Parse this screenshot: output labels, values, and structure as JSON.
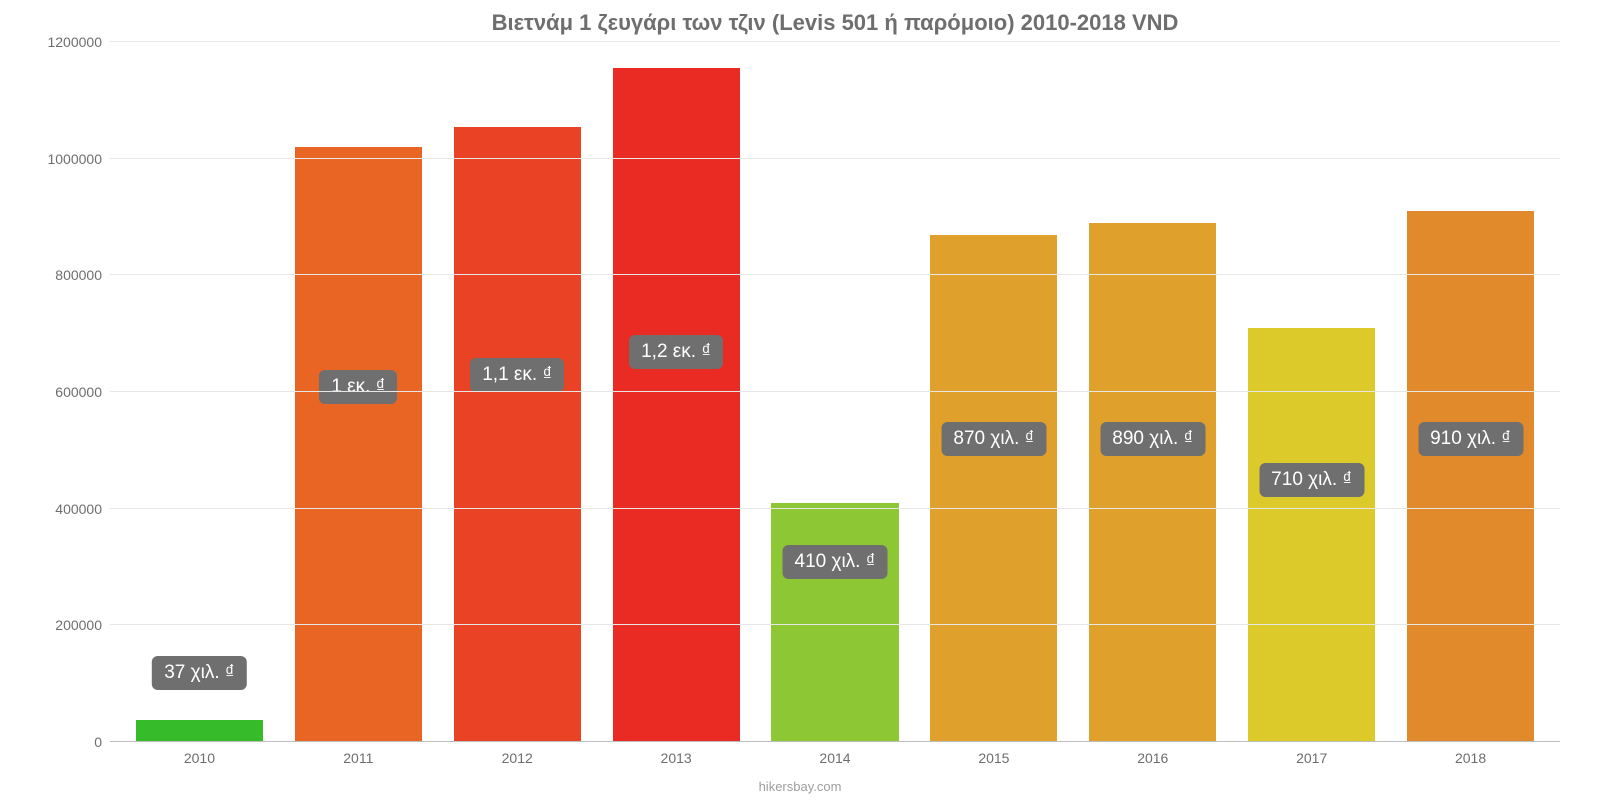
{
  "chart": {
    "type": "bar",
    "title": "Βιετνάμ 1 ζευγάρι των τζιν (Levis 501 ή παρόμοιο) 2010-2018 VND",
    "title_fontsize": 22,
    "title_color": "#6e6e6e",
    "background_color": "#ffffff",
    "grid_color": "#e6e6e6",
    "axis_color": "#bdbdbd",
    "axis_label_color": "#6e6e6e",
    "axis_fontsize": 14,
    "ylim": [
      0,
      1200000
    ],
    "yticks": [
      0,
      200000,
      400000,
      600000,
      800000,
      1000000,
      1200000
    ],
    "ytick_labels": [
      "0",
      "200000",
      "400000",
      "600000",
      "800000",
      "1000000",
      "1200000"
    ],
    "categories": [
      "2010",
      "2011",
      "2012",
      "2013",
      "2014",
      "2015",
      "2016",
      "2017",
      "2018"
    ],
    "values": [
      37000,
      1020000,
      1055000,
      1155000,
      410000,
      870000,
      890000,
      710000,
      910000
    ],
    "bar_colors": [
      "#36bb2a",
      "#e96524",
      "#e94224",
      "#e92b24",
      "#8dc734",
      "#e0a12c",
      "#e0a12c",
      "#dcc92a",
      "#e08a2c"
    ],
    "bar_width": 0.8,
    "data_labels": [
      "37 χιλ. ₫",
      "1 εκ. ₫",
      "1,1 εκ. ₫",
      "1,2 εκ. ₫",
      "410 χιλ. ₫",
      "870 χιλ. ₫",
      "890 χιλ. ₫",
      "710 χιλ. ₫",
      "910 χιλ. ₫"
    ],
    "data_label_bg": "#6f6f6f",
    "data_label_fontsize": 19,
    "data_label_color": "#ffffff",
    "data_label_y_positions": [
      90000,
      580000,
      600000,
      640000,
      280000,
      490000,
      490000,
      420000,
      490000
    ],
    "attribution": "hikersbay.com",
    "attribution_fontsize": 13,
    "attribution_color": "#9e9e9e"
  }
}
